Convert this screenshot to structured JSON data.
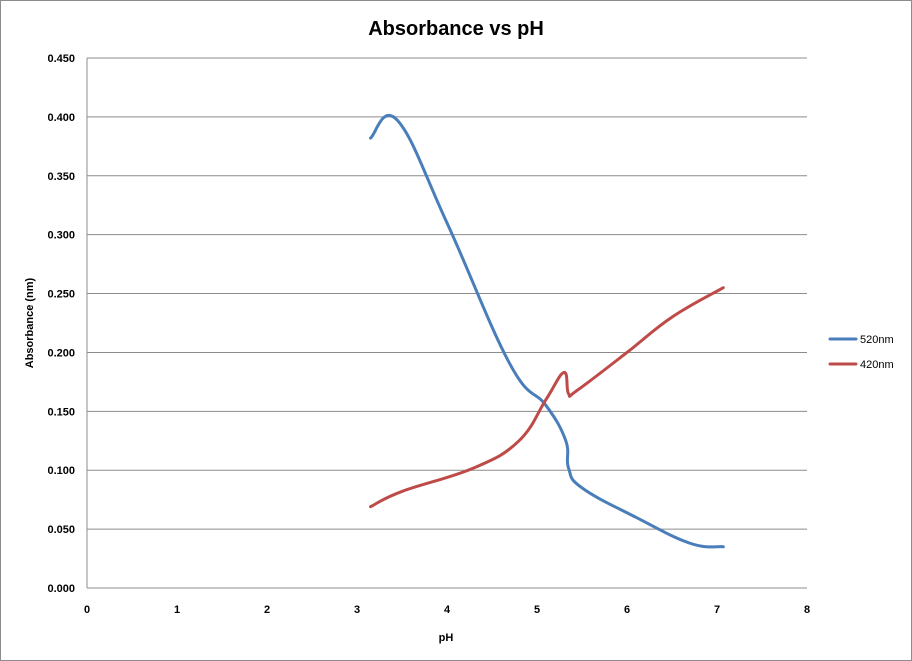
{
  "chart_data": {
    "type": "line",
    "title": "Absorbance vs pH",
    "xlabel": "pH",
    "ylabel": "Absorbance (nm)",
    "xlim": [
      0,
      8
    ],
    "ylim": [
      0,
      0.45
    ],
    "x_ticks": [
      "0",
      "1",
      "2",
      "3",
      "4",
      "5",
      "6",
      "7",
      "8"
    ],
    "y_ticks": [
      "0.000",
      "0.050",
      "0.100",
      "0.150",
      "0.200",
      "0.250",
      "0.300",
      "0.350",
      "0.400",
      "0.450"
    ],
    "grid": "horizontal",
    "legend_position": "right",
    "series": [
      {
        "name": "520nm",
        "color": "#4a7ebb",
        "x": [
          3.15,
          3.45,
          4.0,
          4.7,
          5.1,
          5.32,
          5.35,
          5.5,
          6.1,
          6.7,
          7.07
        ],
        "y": [
          0.382,
          0.397,
          0.31,
          0.19,
          0.155,
          0.125,
          0.102,
          0.085,
          0.06,
          0.038,
          0.035
        ]
      },
      {
        "name": "420nm",
        "color": "#be4b48",
        "x": [
          3.15,
          3.5,
          4.3,
          4.8,
          5.1,
          5.3,
          5.35,
          5.45,
          6.0,
          6.5,
          7.07
        ],
        "y": [
          0.069,
          0.082,
          0.102,
          0.125,
          0.16,
          0.183,
          0.165,
          0.168,
          0.2,
          0.23,
          0.255
        ]
      }
    ]
  }
}
